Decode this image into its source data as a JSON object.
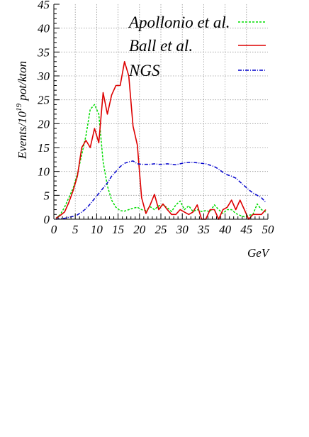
{
  "chart_data": {
    "type": "line",
    "xlabel": "GeV",
    "ylabel": "Events/10",
    "ylabel_sup": "19",
    "ylabel_suffix": " pot/kton",
    "xlim": [
      0,
      50
    ],
    "ylim": [
      0,
      45
    ],
    "xticks": [
      0,
      5,
      10,
      15,
      20,
      25,
      30,
      35,
      40,
      45,
      50
    ],
    "yticks": [
      0,
      5,
      10,
      15,
      20,
      25,
      30,
      35,
      40,
      45
    ],
    "grid": true,
    "legend_position": "top-right",
    "series": [
      {
        "name": "Apollonio et al.",
        "color": "#00dd00",
        "style": "dashed",
        "x": [
          0.5,
          1.5,
          2.5,
          3.5,
          4.5,
          5.5,
          6.5,
          7.5,
          8.5,
          9.5,
          10.5,
          11.5,
          12.5,
          13.5,
          14.5,
          15.5,
          16.5,
          17.5,
          18.5,
          19.5,
          20.5,
          21.5,
          22.5,
          23.5,
          24.5,
          25.5,
          26.5,
          27.5,
          28.5,
          29.5,
          30.5,
          31.5,
          32.5,
          33.5,
          34.5,
          35.5,
          36.5,
          37.5,
          38.5,
          39.5,
          40.5,
          41.5,
          42.5,
          43.5,
          44.5,
          45.5,
          46.5,
          47.5,
          48.5,
          49.5
        ],
        "y": [
          0.2,
          1.0,
          2.5,
          4.5,
          6.5,
          9.5,
          13.5,
          17.5,
          23.0,
          24.0,
          22.0,
          12.0,
          7.0,
          4.0,
          2.5,
          1.8,
          1.7,
          2.0,
          2.3,
          2.5,
          2.0,
          1.8,
          2.6,
          2.0,
          2.8,
          3.0,
          2.4,
          1.6,
          3.0,
          3.8,
          2.0,
          2.8,
          1.6,
          2.0,
          1.6,
          1.8,
          1.6,
          3.0,
          2.0,
          1.2,
          2.0,
          2.0,
          1.2,
          0.8,
          0.5,
          0.8,
          1.0,
          3.2,
          2.0,
          1.5
        ]
      },
      {
        "name": "Ball et al.",
        "color": "#dd0000",
        "style": "solid",
        "x": [
          0.5,
          1.5,
          2.5,
          3.5,
          4.5,
          5.5,
          6.5,
          7.5,
          8.5,
          9.5,
          10.5,
          11.5,
          12.5,
          13.5,
          14.5,
          15.5,
          16.5,
          17.5,
          18.5,
          19.5,
          20.5,
          21.5,
          22.5,
          23.5,
          24.5,
          25.5,
          26.5,
          27.5,
          28.5,
          29.5,
          30.5,
          31.5,
          32.5,
          33.5,
          34.5,
          35.5,
          36.5,
          37.5,
          38.5,
          39.5,
          40.5,
          41.5,
          42.5,
          43.5,
          44.5,
          45.5,
          46.5,
          47.5,
          48.5,
          49.5
        ],
        "y": [
          0.2,
          0.8,
          1.5,
          3.5,
          6.0,
          9.0,
          15.0,
          16.5,
          15.0,
          19.0,
          16.0,
          26.5,
          22.0,
          26.0,
          28.0,
          28.0,
          33.0,
          30.0,
          19.5,
          15.5,
          4.5,
          1.2,
          3.0,
          5.2,
          2.0,
          3.2,
          2.0,
          1.0,
          1.0,
          2.0,
          1.5,
          1.0,
          1.5,
          3.0,
          0.0,
          0.0,
          2.0,
          2.0,
          0.0,
          2.0,
          2.5,
          4.0,
          2.0,
          4.0,
          2.0,
          0.0,
          1.0,
          1.0,
          1.0,
          2.0
        ]
      },
      {
        "name": "NGS",
        "color": "#0000cc",
        "style": "dashdot",
        "x": [
          0.5,
          1.5,
          2.5,
          3.5,
          4.5,
          5.5,
          6.5,
          7.5,
          8.5,
          9.5,
          10.5,
          11.5,
          12.5,
          13.5,
          14.5,
          15.5,
          16.5,
          17.5,
          18.5,
          19.5,
          20.5,
          21.5,
          22.5,
          23.5,
          24.5,
          25.5,
          26.5,
          27.5,
          28.5,
          29.5,
          30.5,
          31.5,
          32.5,
          33.5,
          34.5,
          35.5,
          36.5,
          37.5,
          38.5,
          39.5,
          40.5,
          41.5,
          42.5,
          43.5,
          44.5,
          45.5,
          46.5,
          47.5,
          48.5,
          49.5
        ],
        "y": [
          0.0,
          0.1,
          0.2,
          0.4,
          0.6,
          0.9,
          1.5,
          2.2,
          3.2,
          4.3,
          5.4,
          6.5,
          7.6,
          9.0,
          10.0,
          11.0,
          11.7,
          12.0,
          12.2,
          11.6,
          11.5,
          11.5,
          11.5,
          11.6,
          11.5,
          11.5,
          11.6,
          11.5,
          11.4,
          11.6,
          11.8,
          11.9,
          11.9,
          11.8,
          11.7,
          11.6,
          11.3,
          11.0,
          10.5,
          9.8,
          9.3,
          9.0,
          8.6,
          7.8,
          7.0,
          6.2,
          5.5,
          5.0,
          4.5,
          3.5
        ]
      }
    ]
  }
}
